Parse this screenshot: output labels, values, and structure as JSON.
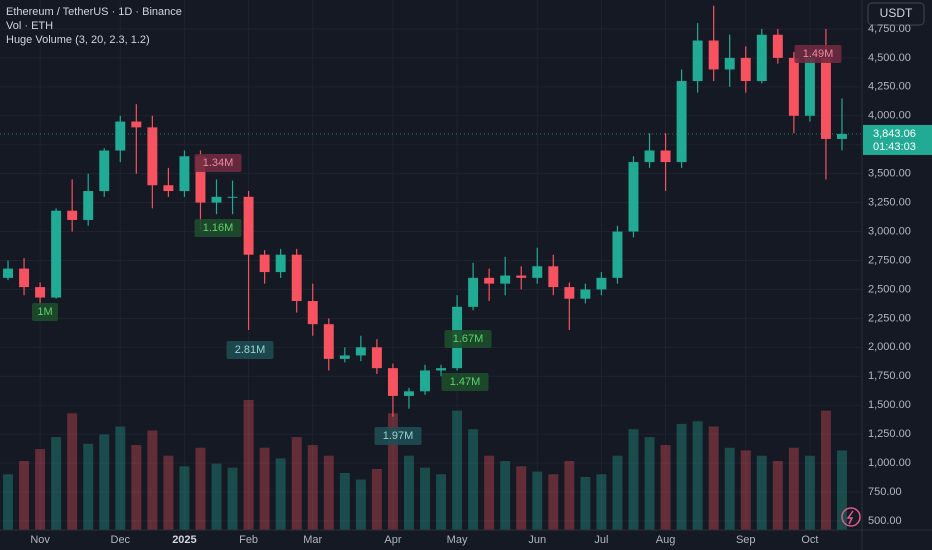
{
  "header": {
    "title": "Ethereum / TetherUS · 1D · Binance",
    "volume_line": "Vol · ETH",
    "indicator": "Huge Volume (3, 20, 2.3, 1.2)"
  },
  "toolbar": {
    "currency": "USDT"
  },
  "chart_data": {
    "type": "candlestick",
    "categories": [
      null,
      null,
      "Nov",
      null,
      null,
      null,
      null,
      "Dec",
      null,
      null,
      null,
      "2025",
      null,
      null,
      null,
      "Feb",
      null,
      null,
      null,
      "Mar",
      null,
      null,
      null,
      null,
      "Apr",
      null,
      null,
      null,
      "May",
      null,
      null,
      null,
      null,
      "Jun",
      null,
      null,
      null,
      "Jul",
      null,
      null,
      null,
      "Aug",
      null,
      null,
      null,
      null,
      "Sep",
      null,
      null,
      null,
      "Oct",
      null,
      null
    ],
    "open": [
      2600,
      2680,
      2520,
      2430,
      3180,
      3100,
      3350,
      3700,
      3950,
      3900,
      3400,
      3350,
      3650,
      3250,
      3300,
      3300,
      2800,
      2650,
      2800,
      2400,
      2200,
      1900,
      1930,
      2000,
      1820,
      1580,
      1620,
      1800,
      1820,
      2350,
      2600,
      2550,
      2620,
      2600,
      2700,
      2520,
      2420,
      2500,
      2600,
      3000,
      3600,
      3700,
      3600,
      4300,
      4650,
      4400,
      4500,
      4300,
      4700,
      4500,
      4000,
      4500,
      3800
    ],
    "high": [
      2750,
      2770,
      2560,
      3200,
      3450,
      3500,
      3720,
      4000,
      4100,
      4000,
      3550,
      3700,
      3700,
      3450,
      3440,
      3350,
      2840,
      2850,
      2850,
      2550,
      2250,
      2000,
      2100,
      2070,
      1860,
      1650,
      1850,
      1850,
      2450,
      2730,
      2680,
      2780,
      2700,
      2860,
      2800,
      2560,
      2550,
      2650,
      3050,
      3650,
      3850,
      3850,
      4400,
      4800,
      4950,
      4700,
      4600,
      4750,
      4750,
      4550,
      4550,
      4750,
      4150
    ],
    "low": [
      2580,
      2450,
      2360,
      2420,
      3000,
      3050,
      3300,
      3600,
      3500,
      3200,
      3300,
      3300,
      3000,
      3150,
      3150,
      2150,
      2550,
      2600,
      2300,
      2100,
      1800,
      1870,
      1880,
      1770,
      1400,
      1470,
      1590,
      1750,
      1800,
      2320,
      2400,
      2450,
      2500,
      2550,
      2450,
      2150,
      2380,
      2450,
      2550,
      2950,
      3550,
      3350,
      3550,
      4200,
      4300,
      4250,
      4200,
      4280,
      4450,
      3850,
      3950,
      3450,
      3700
    ],
    "close": [
      2680,
      2520,
      2430,
      3180,
      3100,
      3350,
      3700,
      3950,
      3900,
      3400,
      3350,
      3650,
      3250,
      3300,
      3300,
      2800,
      2650,
      2800,
      2400,
      2200,
      1900,
      1930,
      2000,
      1820,
      1580,
      1620,
      1800,
      1820,
      2350,
      2600,
      2550,
      2620,
      2600,
      2700,
      2520,
      2420,
      2500,
      2600,
      3000,
      3600,
      3700,
      3600,
      4300,
      4650,
      4400,
      4500,
      4300,
      4700,
      4500,
      4000,
      4500,
      3800,
      3843.06
    ],
    "volume": [
      420,
      520,
      610,
      700,
      880,
      650,
      720,
      780,
      640,
      750,
      560,
      480,
      620,
      500,
      470,
      980,
      620,
      540,
      700,
      640,
      560,
      430,
      380,
      460,
      880,
      560,
      470,
      420,
      900,
      760,
      560,
      520,
      480,
      440,
      420,
      520,
      400,
      420,
      560,
      760,
      700,
      640,
      800,
      820,
      780,
      620,
      600,
      560,
      520,
      620,
      560,
      900,
      600
    ],
    "up_color": "#22ab94",
    "down_color": "#f7525f",
    "ylim": [
      422,
      5000
    ],
    "yticks": [
      {
        "value": 500,
        "label": "500.00"
      },
      {
        "value": 750,
        "label": "750.00"
      },
      {
        "value": 1000,
        "label": "1,000.00"
      },
      {
        "value": 1250,
        "label": "1,250.00"
      },
      {
        "value": 1500,
        "label": "1,500.00"
      },
      {
        "value": 1750,
        "label": "1,750.00"
      },
      {
        "value": 2000,
        "label": "2,000.00"
      },
      {
        "value": 2250,
        "label": "2,250.00"
      },
      {
        "value": 2500,
        "label": "2,500.00"
      },
      {
        "value": 2750,
        "label": "2,750.00"
      },
      {
        "value": 3000,
        "label": "3,000.00"
      },
      {
        "value": 3250,
        "label": "3,250.00"
      },
      {
        "value": 3500,
        "label": "3,500.00"
      },
      {
        "value": 3750,
        "label": "3,750.00"
      },
      {
        "value": 4000,
        "label": "4,000.00"
      },
      {
        "value": 4250,
        "label": "4,250.00"
      },
      {
        "value": 4500,
        "label": "4,500.00"
      },
      {
        "value": 4750,
        "label": "4,750.00"
      }
    ],
    "grid": true,
    "last_price": {
      "value": 3843.06,
      "label": "3,843.06"
    },
    "countdown": "01:43:03",
    "annotations": [
      {
        "text": "1M",
        "fill": "#1d4d2b",
        "text_color": "#5dd36a"
      },
      {
        "text": "1.34M",
        "fill": "#6e2a40",
        "text_color": "#f08aa0"
      },
      {
        "text": "1.16M",
        "fill": "#1d4d2b",
        "text_color": "#5dd36a"
      },
      {
        "text": "2.81M",
        "fill": "#1f4d52",
        "text_color": "#8fd6dc"
      },
      {
        "text": "1.97M",
        "fill": "#1f4d52",
        "text_color": "#8fd6dc"
      },
      {
        "text": "1.47M",
        "fill": "#1d4d2b",
        "text_color": "#5dd36a"
      },
      {
        "text": "1.67M",
        "fill": "#1d4d2b",
        "text_color": "#5dd36a"
      },
      {
        "text": "1.49M",
        "fill": "#6e2a40",
        "text_color": "#f08aa0"
      }
    ]
  }
}
